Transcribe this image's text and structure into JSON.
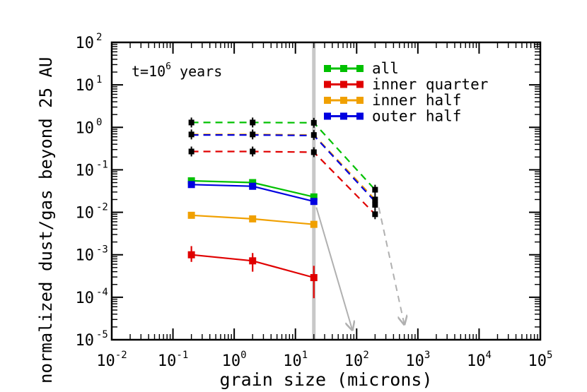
{
  "chart_data": {
    "type": "line",
    "xlabel": "grain size (microns)",
    "ylabel": "normalized dust/gas beyond 25 AU",
    "xscale": "log",
    "yscale": "log",
    "xlim": [
      0.01,
      100000
    ],
    "ylim": [
      1e-05,
      100
    ],
    "x_ticks": [
      {
        "base": "10",
        "exp": "-2",
        "value": 0.01
      },
      {
        "base": "10",
        "exp": "-1",
        "value": 0.1
      },
      {
        "base": "10",
        "exp": "0",
        "value": 1
      },
      {
        "base": "10",
        "exp": "1",
        "value": 10
      },
      {
        "base": "10",
        "exp": "2",
        "value": 100
      },
      {
        "base": "10",
        "exp": "3",
        "value": 1000
      },
      {
        "base": "10",
        "exp": "4",
        "value": 10000
      },
      {
        "base": "10",
        "exp": "5",
        "value": 100000
      }
    ],
    "y_ticks": [
      {
        "base": "10",
        "exp": "-5",
        "value": 1e-05
      },
      {
        "base": "10",
        "exp": "-4",
        "value": 0.0001
      },
      {
        "base": "10",
        "exp": "-3",
        "value": 0.001
      },
      {
        "base": "10",
        "exp": "-2",
        "value": 0.01
      },
      {
        "base": "10",
        "exp": "-1",
        "value": 0.1
      },
      {
        "base": "10",
        "exp": "0",
        "value": 1
      },
      {
        "base": "10",
        "exp": "1",
        "value": 10
      },
      {
        "base": "10",
        "exp": "2",
        "value": 100
      }
    ],
    "annotation": {
      "prefix": "t=10",
      "exp": "6",
      "suffix": " years",
      "position": "top-left"
    },
    "vertical_line": {
      "x": 20,
      "color": "#c8c8c8"
    },
    "legend": {
      "position": "top-right",
      "entries": [
        {
          "label": "all",
          "color": "#00c000"
        },
        {
          "label": "inner quarter",
          "color": "#e00000"
        },
        {
          "label": "inner half",
          "color": "#f0a000"
        },
        {
          "label": "outer half",
          "color": "#0000e0"
        }
      ]
    },
    "series": [
      {
        "name": "all",
        "color": "#00c000",
        "style": "solid",
        "x": [
          0.2,
          2,
          20
        ],
        "y": [
          0.055,
          0.05,
          0.023
        ]
      },
      {
        "name": "outer half",
        "color": "#0000e0",
        "style": "solid",
        "x": [
          0.2,
          2,
          20
        ],
        "y": [
          0.045,
          0.041,
          0.018
        ]
      },
      {
        "name": "inner half",
        "color": "#f0a000",
        "style": "solid",
        "x": [
          0.2,
          2,
          20
        ],
        "y": [
          0.0085,
          0.007,
          0.0052
        ]
      },
      {
        "name": "inner quarter",
        "color": "#e00000",
        "style": "solid",
        "x": [
          0.2,
          2,
          20
        ],
        "y": [
          0.001,
          0.00072,
          0.00029
        ],
        "yerr_low": [
          0.00068,
          0.0004,
          9.5e-05
        ],
        "yerr_high": [
          0.0016,
          0.0011,
          0.00055
        ]
      },
      {
        "name": "all (dashed)",
        "color": "#00c000",
        "style": "dashed",
        "x": [
          0.2,
          2,
          20,
          200
        ],
        "y": [
          1.3,
          1.3,
          1.28,
          0.034
        ]
      },
      {
        "name": "inner half (dashed)",
        "color": "#f0a000",
        "style": "dashed",
        "x": [
          0.2,
          2,
          20,
          200
        ],
        "y": [
          0.68,
          0.68,
          0.66,
          0.02
        ]
      },
      {
        "name": "outer half (dashed)",
        "color": "#0000e0",
        "style": "dashed",
        "x": [
          0.2,
          2,
          20,
          200
        ],
        "y": [
          0.66,
          0.66,
          0.64,
          0.018
        ]
      },
      {
        "name": "inner quarter (dashed)",
        "color": "#e00000",
        "style": "dashed",
        "x": [
          0.2,
          2,
          20,
          200
        ],
        "y": [
          0.27,
          0.27,
          0.26,
          0.009
        ]
      }
    ],
    "black_markers": [
      {
        "x": 0.2,
        "y": 1.3
      },
      {
        "x": 2,
        "y": 1.3
      },
      {
        "x": 20,
        "y": 1.28
      },
      {
        "x": 0.2,
        "y": 0.68
      },
      {
        "x": 2,
        "y": 0.68
      },
      {
        "x": 20,
        "y": 0.66
      },
      {
        "x": 0.2,
        "y": 0.27
      },
      {
        "x": 2,
        "y": 0.27
      },
      {
        "x": 20,
        "y": 0.26
      },
      {
        "x": 200,
        "y": 0.034
      },
      {
        "x": 200,
        "y": 0.02
      },
      {
        "x": 200,
        "y": 0.015
      },
      {
        "x": 200,
        "y": 0.009
      }
    ],
    "arrows": [
      {
        "style": "solid",
        "from": [
          22,
          0.013
        ],
        "to": [
          85,
          1.7e-05
        ],
        "color": "#b0b0b0"
      },
      {
        "style": "dashed",
        "from": [
          230,
          0.013
        ],
        "to": [
          600,
          2.3e-05
        ],
        "color": "#b0b0b0"
      }
    ]
  }
}
